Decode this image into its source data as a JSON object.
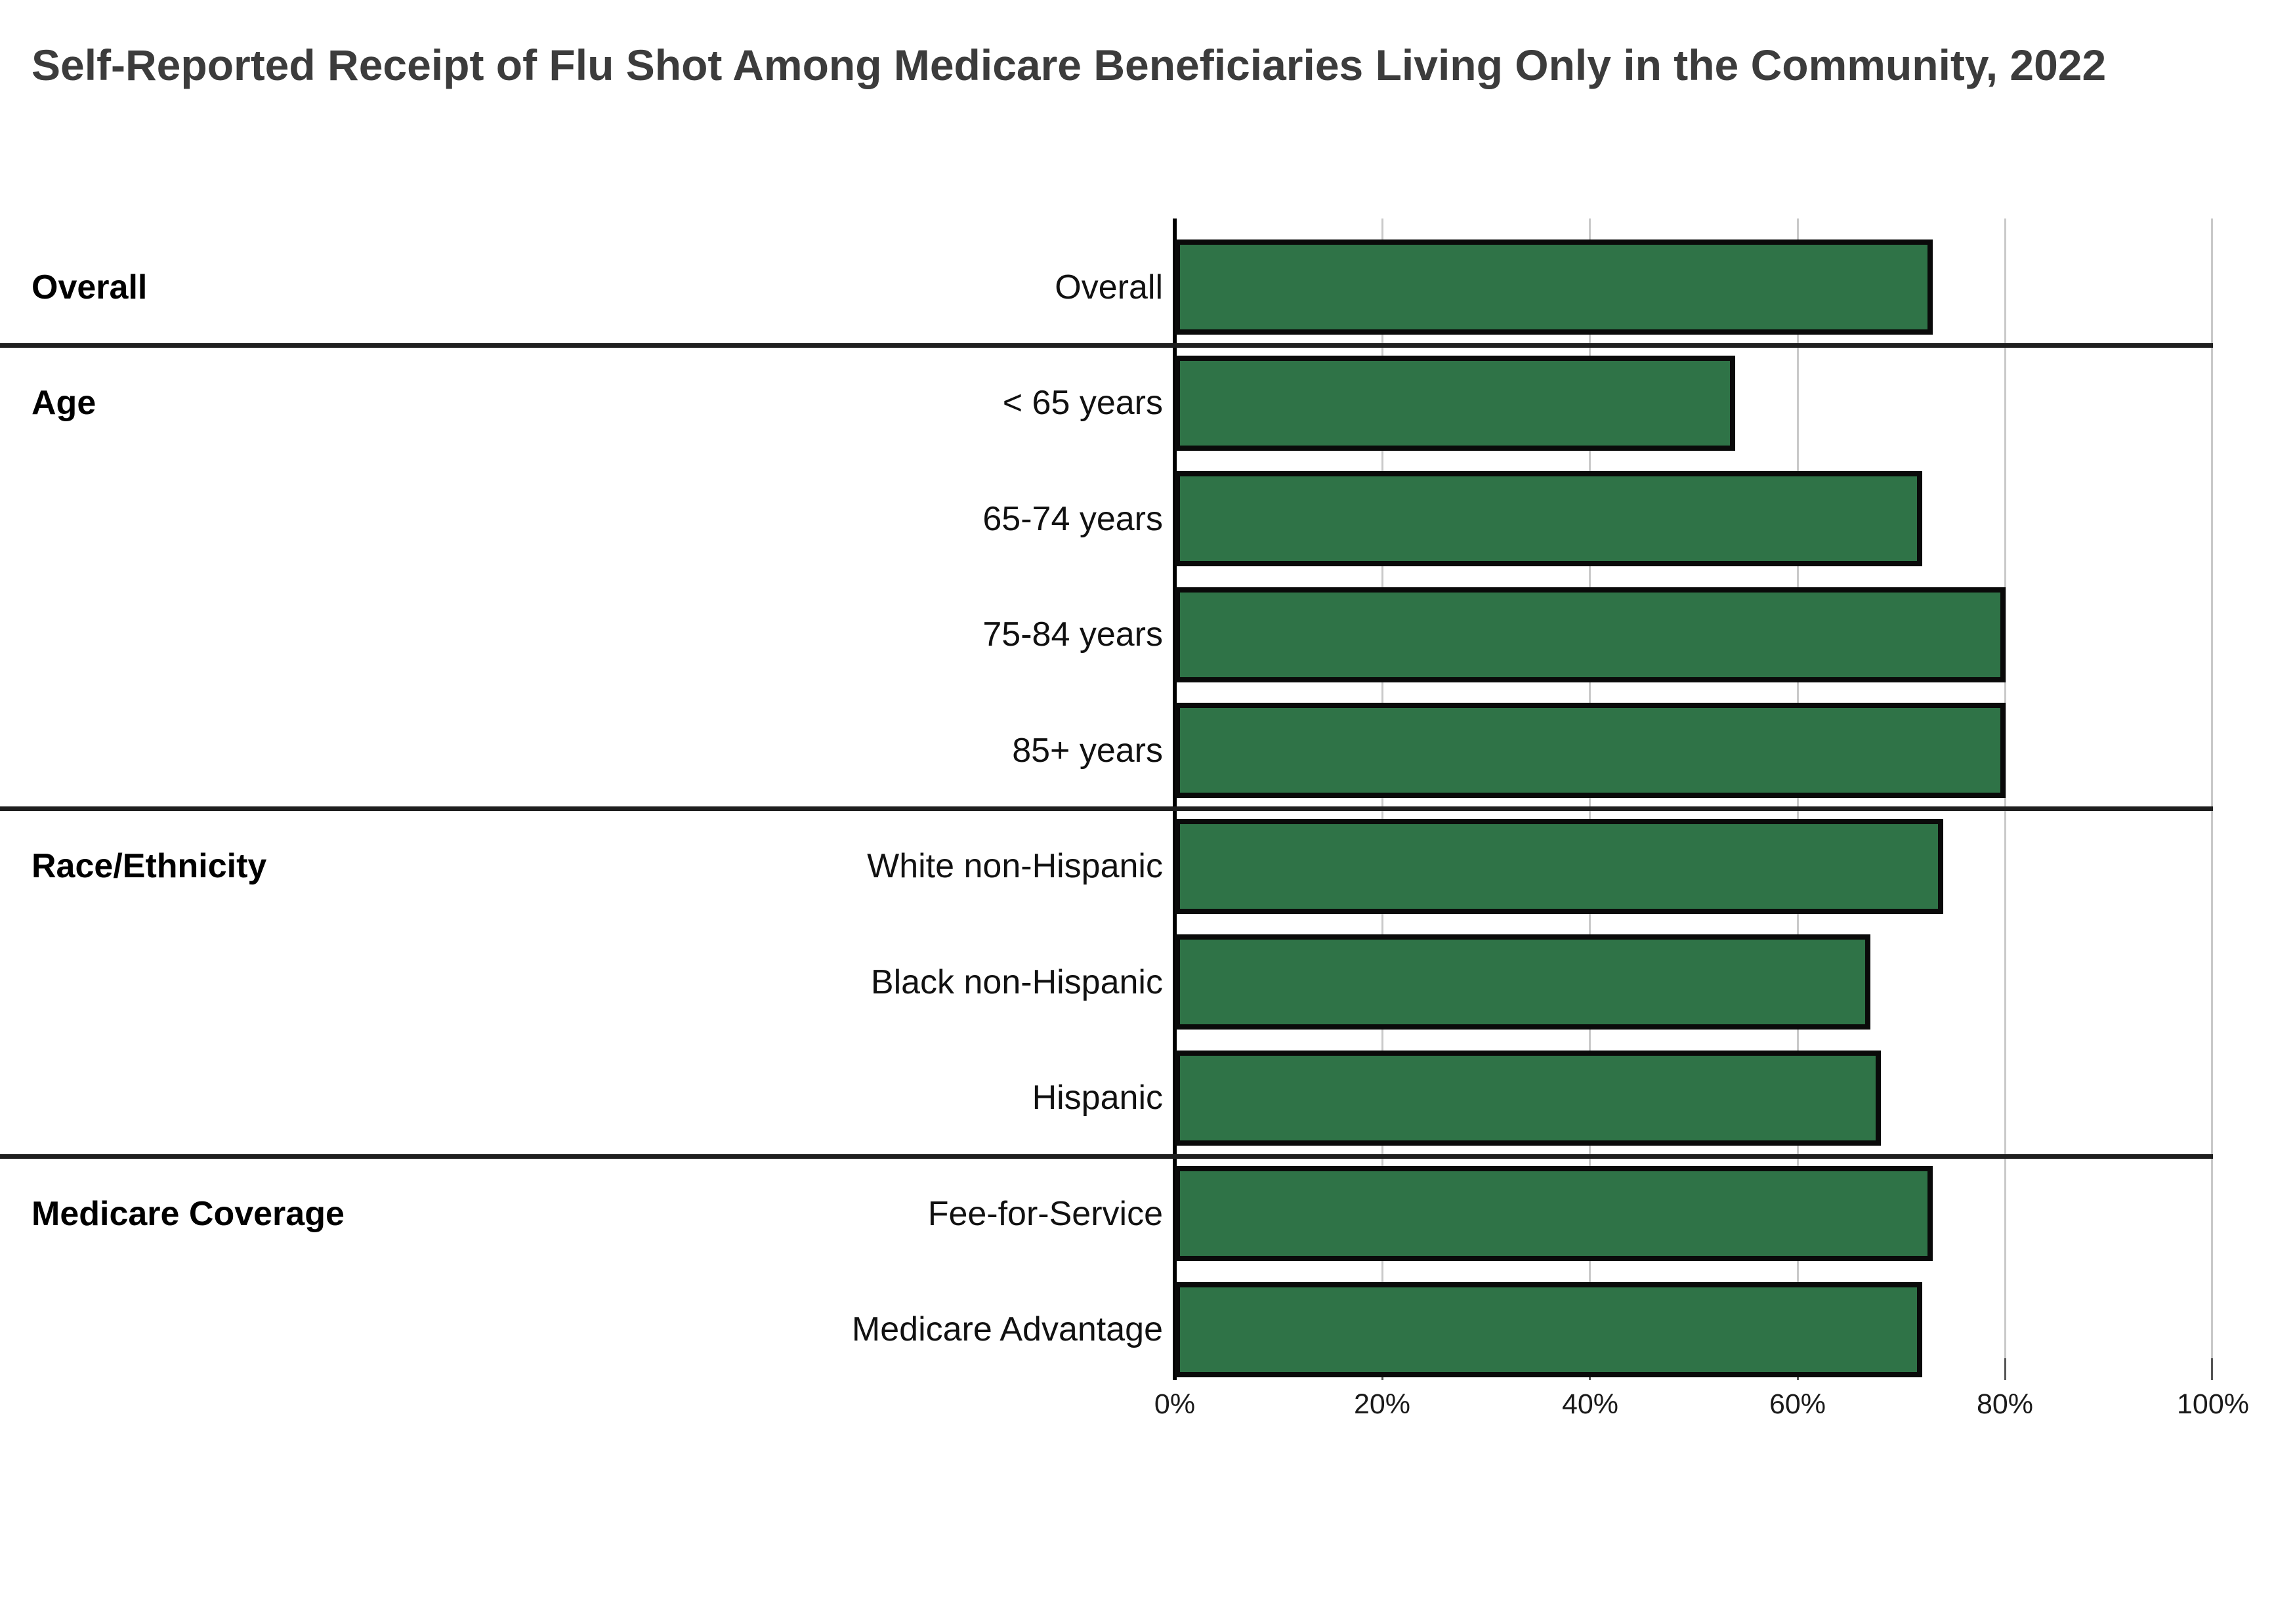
{
  "title": "Self-Reported Receipt of Flu Shot Among Medicare Beneficiaries Living Only in the Community, 2022",
  "chart_data": {
    "type": "bar",
    "orientation": "horizontal",
    "unit": "percent",
    "xlim": [
      0,
      100
    ],
    "grid": "vertical-gridlines-on",
    "legend": "none",
    "x_ticks": [
      {
        "value": 0,
        "label": "0%"
      },
      {
        "value": 20,
        "label": "20%"
      },
      {
        "value": 40,
        "label": "40%"
      },
      {
        "value": 60,
        "label": "60%"
      },
      {
        "value": 80,
        "label": "80%"
      },
      {
        "value": 100,
        "label": "100%"
      }
    ],
    "groups": [
      {
        "label": "Overall",
        "rows": [
          {
            "label": "Overall",
            "value": 73
          }
        ]
      },
      {
        "label": "Age",
        "rows": [
          {
            "label": "< 65 years",
            "value": 54
          },
          {
            "label": "65-74 years",
            "value": 72
          },
          {
            "label": "75-84 years",
            "value": 80
          },
          {
            "label": "85+ years",
            "value": 80
          }
        ]
      },
      {
        "label": "Race/Ethnicity",
        "rows": [
          {
            "label": "White non-Hispanic",
            "value": 74
          },
          {
            "label": "Black non-Hispanic",
            "value": 67
          },
          {
            "label": "Hispanic",
            "value": 68
          }
        ]
      },
      {
        "label": "Medicare Coverage",
        "rows": [
          {
            "label": "Fee-for-Service",
            "value": 73
          },
          {
            "label": "Medicare Advantage",
            "value": 72
          }
        ]
      }
    ],
    "colors": {
      "bar_fill": "#2f7347",
      "bar_border": "#0a0a0a",
      "gridline": "#c9c9c9",
      "separator": "#1f1f1f",
      "axis_line": "#000000",
      "title_text": "#3c3c3c",
      "label_text": "#111111"
    }
  }
}
